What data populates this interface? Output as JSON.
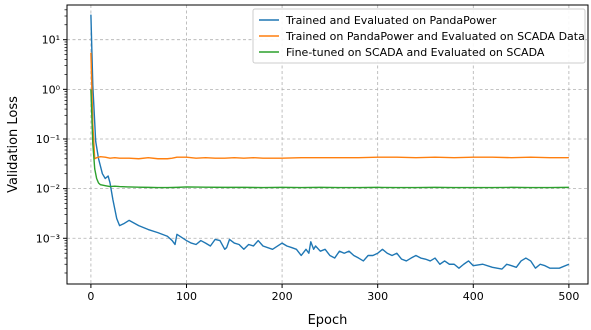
{
  "chart_data": {
    "type": "line",
    "xlabel": "Epoch",
    "ylabel": "Validation Loss",
    "xlim": [
      -25,
      520
    ],
    "ylim": [
      0.00012,
      50
    ],
    "yscale": "log",
    "grid": true,
    "legend_position": "top-right",
    "x_ticks": [
      0,
      100,
      200,
      300,
      400,
      500
    ],
    "x_tick_labels": [
      "0",
      "100",
      "200",
      "300",
      "400",
      "500"
    ],
    "y_ticks": [
      0.001,
      0.01,
      0.1,
      1,
      10
    ],
    "y_tick_labels": [
      "10⁻³",
      "10⁻²",
      "10⁻¹",
      "10⁰",
      "10¹"
    ],
    "series": [
      {
        "name": "Trained and Evaluated on PandaPower",
        "color": "#1f77b4",
        "x": [
          0,
          2,
          5,
          8,
          12,
          15,
          18,
          20,
          23,
          27,
          30,
          35,
          40,
          50,
          60,
          70,
          80,
          85,
          88,
          90,
          100,
          105,
          110,
          115,
          120,
          125,
          130,
          135,
          140,
          142,
          145,
          150,
          155,
          160,
          165,
          170,
          175,
          180,
          190,
          200,
          205,
          210,
          215,
          220,
          225,
          228,
          230,
          233,
          235,
          240,
          245,
          250,
          255,
          260,
          265,
          270,
          275,
          280,
          285,
          290,
          295,
          300,
          305,
          310,
          315,
          320,
          325,
          330,
          335,
          340,
          345,
          350,
          355,
          360,
          365,
          370,
          375,
          380,
          385,
          390,
          395,
          400,
          410,
          420,
          430,
          435,
          440,
          445,
          450,
          455,
          460,
          465,
          470,
          475,
          480,
          490,
          500
        ],
        "y": [
          32,
          1.2,
          0.09,
          0.04,
          0.02,
          0.016,
          0.018,
          0.013,
          0.006,
          0.0025,
          0.0018,
          0.002,
          0.0023,
          0.0018,
          0.0015,
          0.0013,
          0.0011,
          0.0009,
          0.00075,
          0.0012,
          0.0009,
          0.0008,
          0.00075,
          0.0009,
          0.0008,
          0.0007,
          0.00095,
          0.0009,
          0.0006,
          0.00065,
          0.00095,
          0.0008,
          0.00075,
          0.0006,
          0.00075,
          0.0007,
          0.0009,
          0.0007,
          0.0006,
          0.0008,
          0.0007,
          0.00065,
          0.0006,
          0.00045,
          0.0006,
          0.0005,
          0.00085,
          0.0006,
          0.0007,
          0.00055,
          0.0006,
          0.00045,
          0.0004,
          0.00055,
          0.0005,
          0.00055,
          0.00045,
          0.0004,
          0.00035,
          0.00045,
          0.00045,
          0.0005,
          0.0006,
          0.0005,
          0.00045,
          0.0005,
          0.00038,
          0.00035,
          0.0004,
          0.00045,
          0.0004,
          0.00038,
          0.00035,
          0.0004,
          0.0003,
          0.00035,
          0.0003,
          0.0003,
          0.00025,
          0.0003,
          0.00035,
          0.00028,
          0.0003,
          0.00026,
          0.00024,
          0.0003,
          0.00028,
          0.00026,
          0.00035,
          0.0004,
          0.00035,
          0.00025,
          0.0003,
          0.00028,
          0.00025,
          0.00025,
          0.0003
        ]
      },
      {
        "name": "Trained on PandaPower and Evaluated on SCADA Data",
        "color": "#ff7f0e",
        "x": [
          0,
          2,
          4,
          6,
          10,
          15,
          20,
          25,
          30,
          40,
          50,
          60,
          70,
          80,
          85,
          90,
          100,
          110,
          120,
          130,
          140,
          150,
          160,
          170,
          180,
          190,
          200,
          220,
          240,
          260,
          280,
          300,
          320,
          340,
          360,
          380,
          400,
          420,
          440,
          460,
          480,
          500
        ],
        "y": [
          5.5,
          0.2,
          0.04,
          0.042,
          0.044,
          0.043,
          0.041,
          0.042,
          0.041,
          0.041,
          0.04,
          0.042,
          0.04,
          0.04,
          0.041,
          0.043,
          0.043,
          0.041,
          0.042,
          0.041,
          0.041,
          0.042,
          0.041,
          0.042,
          0.041,
          0.041,
          0.041,
          0.042,
          0.042,
          0.042,
          0.042,
          0.043,
          0.043,
          0.042,
          0.043,
          0.042,
          0.043,
          0.043,
          0.042,
          0.043,
          0.042,
          0.042
        ]
      },
      {
        "name": "Fine-tuned on SCADA and Evaluated on SCADA",
        "color": "#2ca02c",
        "x": [
          0,
          2,
          4,
          6,
          8,
          10,
          15,
          20,
          25,
          30,
          40,
          50,
          60,
          70,
          80,
          90,
          100,
          120,
          140,
          160,
          180,
          200,
          220,
          240,
          260,
          280,
          300,
          320,
          340,
          360,
          380,
          400,
          420,
          440,
          460,
          480,
          500
        ],
        "y": [
          1.0,
          0.08,
          0.025,
          0.016,
          0.013,
          0.012,
          0.0115,
          0.011,
          0.0112,
          0.011,
          0.0108,
          0.0107,
          0.0106,
          0.0105,
          0.0105,
          0.0106,
          0.0108,
          0.0107,
          0.0106,
          0.0106,
          0.0105,
          0.0106,
          0.0105,
          0.0106,
          0.0105,
          0.0105,
          0.0106,
          0.0105,
          0.0105,
          0.0106,
          0.0105,
          0.0105,
          0.0105,
          0.0106,
          0.0105,
          0.0105,
          0.0106
        ]
      }
    ]
  }
}
